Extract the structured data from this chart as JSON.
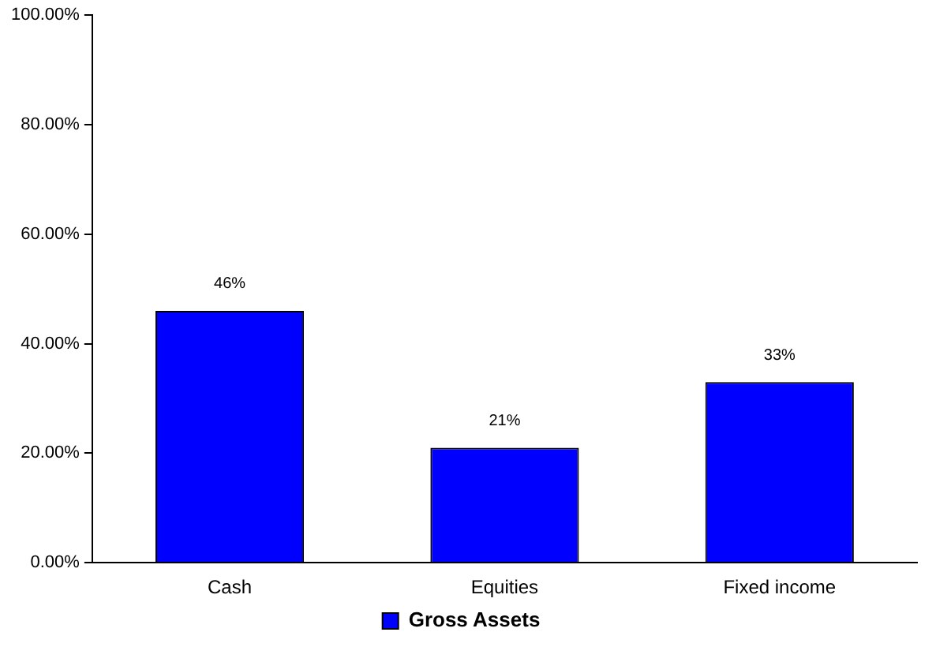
{
  "chart_data": {
    "type": "bar",
    "categories": [
      "Cash",
      "Equities",
      "Fixed income"
    ],
    "series": [
      {
        "name": "Gross Assets",
        "color": "#0000ff",
        "values": [
          46,
          21,
          33
        ],
        "value_labels": [
          "46%",
          "21%",
          "33%"
        ]
      }
    ],
    "ylim": [
      0,
      100
    ],
    "yticks": [
      {
        "value": 0,
        "label": "0.00%"
      },
      {
        "value": 20,
        "label": "20.00%"
      },
      {
        "value": 40,
        "label": "40.00%"
      },
      {
        "value": 60,
        "label": "60.00%"
      },
      {
        "value": 80,
        "label": "80.00%"
      },
      {
        "value": 100,
        "label": "100.00%"
      }
    ],
    "grid": false,
    "legend": "bottom"
  }
}
